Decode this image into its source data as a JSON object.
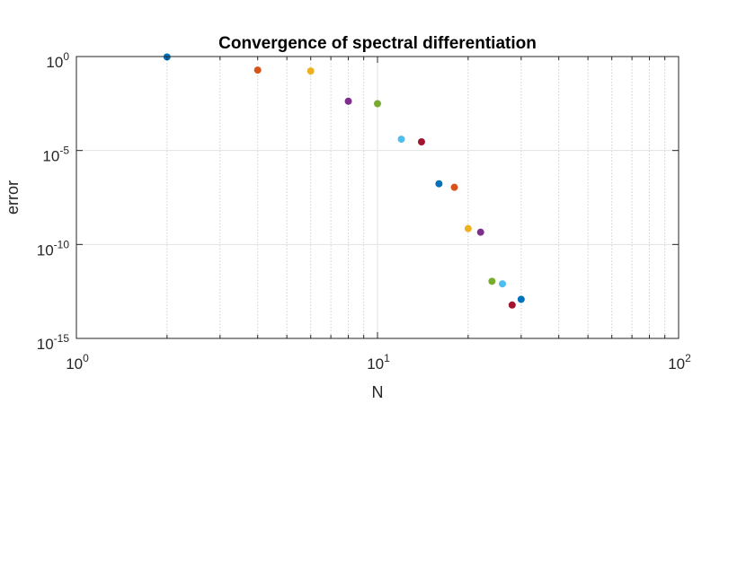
{
  "chart_data": {
    "type": "scatter",
    "title": "Convergence of spectral differentiation",
    "xlabel": "N",
    "ylabel": "error",
    "xscale": "log",
    "yscale": "log",
    "xlim": [
      1,
      100
    ],
    "ylim": [
      1e-15,
      1
    ],
    "grid": true,
    "minor_grid_x": true,
    "x_ticks": [
      {
        "base": "10",
        "exp": "0",
        "value": 1
      },
      {
        "base": "10",
        "exp": "1",
        "value": 10
      },
      {
        "base": "10",
        "exp": "2",
        "value": 100
      }
    ],
    "y_ticks": [
      {
        "base": "10",
        "exp": "0",
        "value": 1
      },
      {
        "base": "10",
        "exp": "-5",
        "value": 1e-05
      },
      {
        "base": "10",
        "exp": "-10",
        "value": 1e-10
      },
      {
        "base": "10",
        "exp": "-15",
        "value": 1e-15
      }
    ],
    "points": [
      {
        "x": 2,
        "y": 0.95,
        "color": "#0072BD"
      },
      {
        "x": 4,
        "y": 0.19,
        "color": "#D95319"
      },
      {
        "x": 6,
        "y": 0.17,
        "color": "#EDB120"
      },
      {
        "x": 8,
        "y": 0.0042,
        "color": "#7E2F8E"
      },
      {
        "x": 10,
        "y": 0.0031,
        "color": "#77AC30"
      },
      {
        "x": 12,
        "y": 4e-05,
        "color": "#4DBEEE"
      },
      {
        "x": 14,
        "y": 2.9e-05,
        "color": "#A2142F"
      },
      {
        "x": 16,
        "y": 1.7e-07,
        "color": "#0072BD"
      },
      {
        "x": 18,
        "y": 1.1e-07,
        "color": "#D95319"
      },
      {
        "x": 20,
        "y": 7e-10,
        "color": "#EDB120"
      },
      {
        "x": 22,
        "y": 4.5e-10,
        "color": "#7E2F8E"
      },
      {
        "x": 24,
        "y": 1.1e-12,
        "color": "#77AC30"
      },
      {
        "x": 26,
        "y": 8e-13,
        "color": "#4DBEEE"
      },
      {
        "x": 28,
        "y": 6e-14,
        "color": "#A2142F"
      },
      {
        "x": 30,
        "y": 1.2e-13,
        "color": "#0072BD"
      }
    ]
  }
}
